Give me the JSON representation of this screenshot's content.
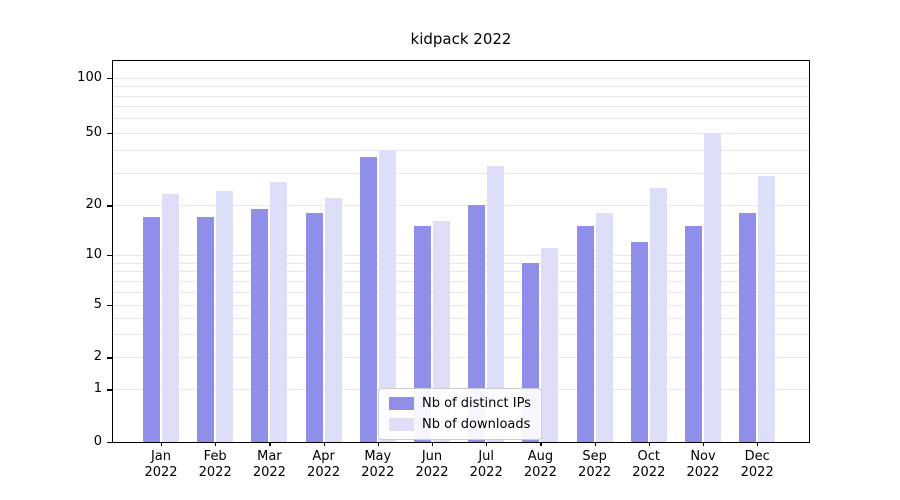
{
  "chart_data": {
    "type": "bar",
    "title": "kidpack 2022",
    "xlabel": "",
    "ylabel": "",
    "categories": [
      "Jan 2022",
      "Feb 2022",
      "Mar 2022",
      "Apr 2022",
      "May 2022",
      "Jun 2022",
      "Jul 2022",
      "Aug 2022",
      "Sep 2022",
      "Oct 2022",
      "Nov 2022",
      "Dec 2022"
    ],
    "series": [
      {
        "name": "Nb of distinct IPs",
        "color": "#8f8fe9",
        "values": [
          17,
          17,
          19,
          18,
          37,
          15,
          20,
          9,
          15,
          12,
          15,
          18
        ]
      },
      {
        "name": "Nb of downloads",
        "color": "#dedef8",
        "values": [
          23,
          24,
          27,
          22,
          40,
          16,
          33,
          11,
          18,
          25,
          50,
          29
        ]
      }
    ],
    "yticks": [
      0,
      1,
      2,
      5,
      10,
      20,
      50,
      100
    ],
    "yscale": "symlog-like (linear 0-1, logarithmic above)",
    "ylim": [
      0,
      110
    ],
    "grid": "horizontal minor log gridlines",
    "legend_position": "bottom-center-inside",
    "background": "#ffffff",
    "gridline_color": "#e8e8e8",
    "axis_color": "#000000"
  }
}
